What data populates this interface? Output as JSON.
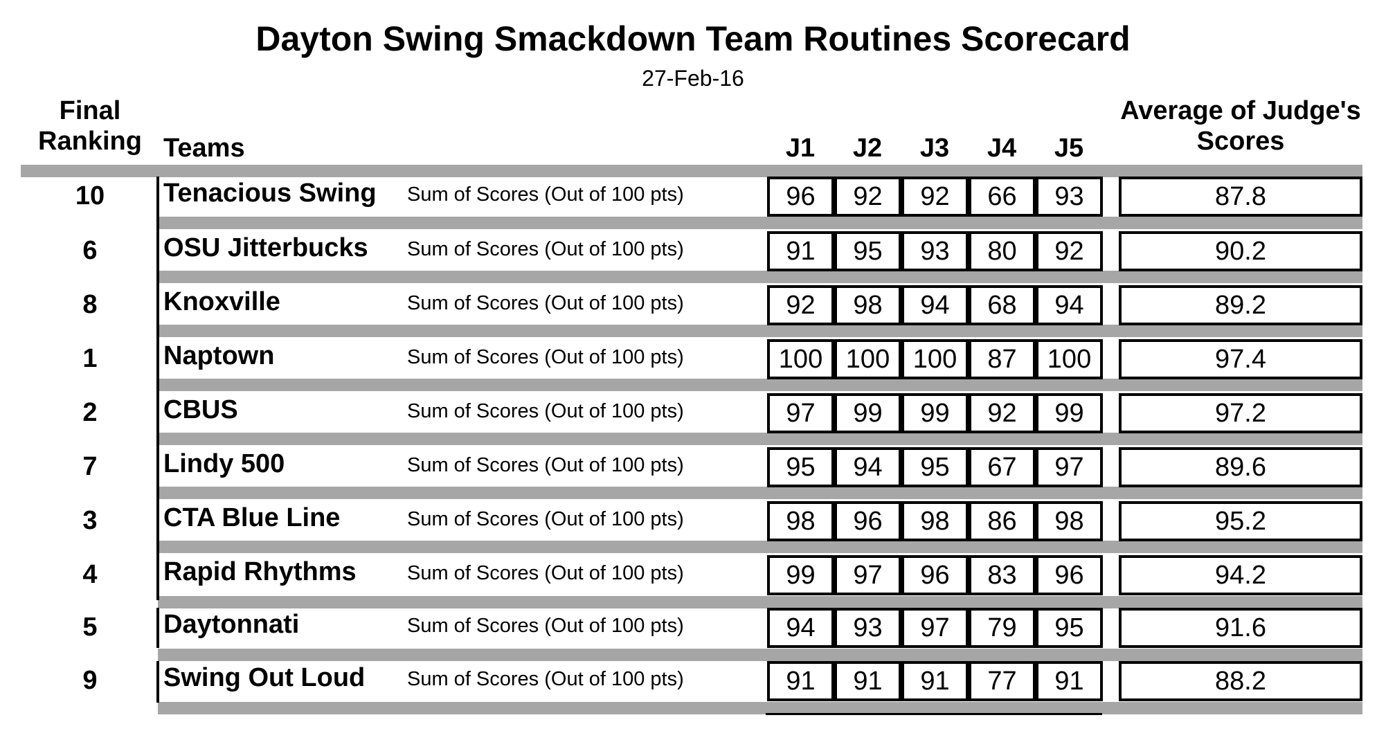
{
  "title": "Dayton Swing Smackdown Team Routines Scorecard",
  "date": "27-Feb-16",
  "headers": {
    "final_ranking_line1": "Final",
    "final_ranking_line2": "Ranking",
    "teams": "Teams",
    "judges": [
      "J1",
      "J2",
      "J3",
      "J4",
      "J5"
    ],
    "average_line1": "Average of Judge's",
    "average_line2": "Scores"
  },
  "rows": [
    {
      "rank": "10",
      "team": "Tenacious Swing",
      "desc": "Sum of Scores (Out of 100 pts)",
      "scores": [
        "96",
        "92",
        "92",
        "66",
        "93"
      ],
      "average": "87.8"
    },
    {
      "rank": "6",
      "team": "OSU Jitterbucks",
      "desc": "Sum of Scores (Out of 100 pts)",
      "scores": [
        "91",
        "95",
        "93",
        "80",
        "92"
      ],
      "average": "90.2"
    },
    {
      "rank": "8",
      "team": "Knoxville",
      "desc": "Sum of Scores (Out of 100 pts)",
      "scores": [
        "92",
        "98",
        "94",
        "68",
        "94"
      ],
      "average": "89.2"
    },
    {
      "rank": "1",
      "team": "Naptown",
      "desc": "Sum of Scores (Out of 100 pts)",
      "scores": [
        "100",
        "100",
        "100",
        "87",
        "100"
      ],
      "average": "97.4"
    },
    {
      "rank": "2",
      "team": "CBUS",
      "desc": "Sum of Scores (Out of 100 pts)",
      "scores": [
        "97",
        "99",
        "99",
        "92",
        "99"
      ],
      "average": "97.2"
    },
    {
      "rank": "7",
      "team": "Lindy 500",
      "desc": "Sum of Scores (Out of 100 pts)",
      "scores": [
        "95",
        "94",
        "95",
        "67",
        "97"
      ],
      "average": "89.6"
    },
    {
      "rank": "3",
      "team": "CTA Blue Line",
      "desc": "Sum of Scores (Out of 100 pts)",
      "scores": [
        "98",
        "96",
        "98",
        "86",
        "98"
      ],
      "average": "95.2"
    },
    {
      "rank": "4",
      "team": "Rapid Rhythms",
      "desc": "Sum of Scores (Out of 100 pts)",
      "scores": [
        "99",
        "97",
        "96",
        "83",
        "96"
      ],
      "average": "94.2"
    },
    {
      "rank": "5",
      "team": "Daytonnati",
      "desc": "Sum of Scores (Out of 100 pts)",
      "scores": [
        "94",
        "93",
        "97",
        "79",
        "95"
      ],
      "average": "91.6"
    },
    {
      "rank": "9",
      "team": "Swing Out Loud",
      "desc": "Sum of Scores (Out of 100 pts)",
      "scores": [
        "91",
        "91",
        "91",
        "77",
        "91"
      ],
      "average": "88.2"
    }
  ]
}
